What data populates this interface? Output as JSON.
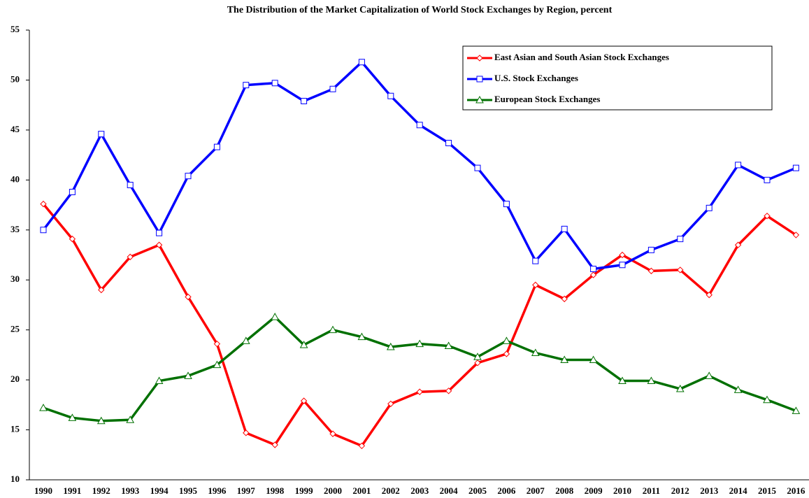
{
  "chart_data": {
    "type": "line",
    "title": "The Distribution of the Market Capitalization of World Stock Exchanges by Region, percent",
    "categories": [
      "1990",
      "1991",
      "1992",
      "1993",
      "1994",
      "1995",
      "1996",
      "1997",
      "1998",
      "1999",
      "2000",
      "2001",
      "2002",
      "2003",
      "2004",
      "2005",
      "2006",
      "2007",
      "2008",
      "2009",
      "2010",
      "2011",
      "2012",
      "2013",
      "2014",
      "2015",
      "2016"
    ],
    "series": [
      {
        "name": "East Asian and South Asian Stock Exchanges",
        "color": "#ff0000",
        "marker": "diamond",
        "values": [
          37.6,
          34.1,
          29.0,
          32.3,
          33.5,
          28.3,
          23.6,
          14.7,
          13.5,
          17.9,
          14.6,
          13.4,
          17.6,
          18.8,
          18.9,
          21.7,
          22.6,
          29.5,
          28.1,
          30.5,
          32.5,
          30.9,
          31.0,
          28.5,
          33.5,
          36.4,
          34.5
        ]
      },
      {
        "name": "U.S. Stock Exchanges",
        "color": "#0000ff",
        "marker": "square",
        "values": [
          35.0,
          38.8,
          44.6,
          39.5,
          34.7,
          40.4,
          43.3,
          49.5,
          49.7,
          47.9,
          49.1,
          51.8,
          48.4,
          45.5,
          43.7,
          41.2,
          37.6,
          31.9,
          35.1,
          31.1,
          31.5,
          33.0,
          34.1,
          37.2,
          41.5,
          40.0,
          41.2
        ]
      },
      {
        "name": "European Stock Exchanges",
        "color": "#007000",
        "marker": "triangle",
        "values": [
          17.2,
          16.2,
          15.9,
          16.0,
          19.9,
          20.4,
          21.5,
          23.9,
          26.3,
          23.5,
          25.0,
          24.3,
          23.3,
          23.6,
          23.4,
          22.3,
          23.9,
          22.7,
          22.0,
          22.0,
          19.9,
          19.9,
          19.1,
          20.4,
          19.0,
          18.0,
          16.9
        ]
      }
    ],
    "ylim": [
      10,
      55
    ],
    "yticks": [
      10,
      15,
      20,
      25,
      30,
      35,
      40,
      45,
      50,
      55
    ],
    "grid": false,
    "legend": "upper right"
  }
}
